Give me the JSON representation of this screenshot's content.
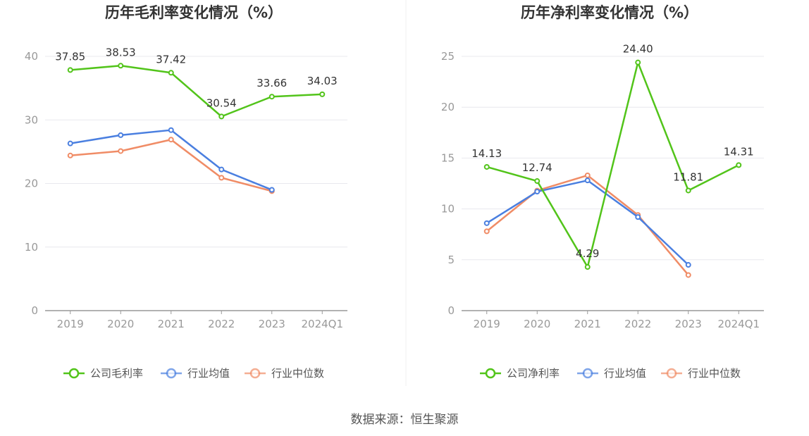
{
  "source": "数据来源：恒生聚源",
  "colors": {
    "company": "#52c41a",
    "avg": "#4a7fe0",
    "median": "#f08c66",
    "grid": "#e8e8ee",
    "axis": "#999999"
  },
  "chart_data": [
    {
      "type": "line",
      "title": "历年毛利率变化情况（%）",
      "categories": [
        "2019",
        "2020",
        "2021",
        "2022",
        "2023",
        "2024Q1"
      ],
      "ylim": [
        0,
        40
      ],
      "yticks": [
        0,
        10,
        20,
        30,
        40
      ],
      "grid": true,
      "legend": "bottom",
      "series": [
        {
          "name": "公司毛利率",
          "key": "company",
          "values": [
            37.85,
            38.53,
            37.42,
            30.54,
            33.66,
            34.03
          ],
          "labels": [
            "37.85",
            "38.53",
            "37.42",
            "30.54",
            "33.66",
            "34.03"
          ]
        },
        {
          "name": "行业均值",
          "key": "avg",
          "values": [
            26.3,
            27.6,
            28.4,
            22.2,
            19.0,
            null
          ]
        },
        {
          "name": "行业中位数",
          "key": "median",
          "values": [
            24.4,
            25.1,
            26.9,
            20.9,
            18.8,
            null
          ]
        }
      ]
    },
    {
      "type": "line",
      "title": "历年净利率变化情况（%）",
      "categories": [
        "2019",
        "2020",
        "2021",
        "2022",
        "2023",
        "2024Q1"
      ],
      "ylim": [
        0,
        25
      ],
      "yticks": [
        0,
        5,
        10,
        15,
        20,
        25
      ],
      "grid": true,
      "legend": "bottom",
      "series": [
        {
          "name": "公司净利率",
          "key": "company",
          "values": [
            14.13,
            12.74,
            4.29,
            24.4,
            11.81,
            14.31
          ],
          "labels": [
            "14.13",
            "12.74",
            "4.29",
            "24.40",
            "11.81",
            "14.31"
          ]
        },
        {
          "name": "行业均值",
          "key": "avg",
          "values": [
            8.6,
            11.7,
            12.8,
            9.2,
            4.5,
            null
          ]
        },
        {
          "name": "行业中位数",
          "key": "median",
          "values": [
            7.8,
            11.8,
            13.3,
            9.4,
            3.5,
            null
          ]
        }
      ]
    }
  ]
}
